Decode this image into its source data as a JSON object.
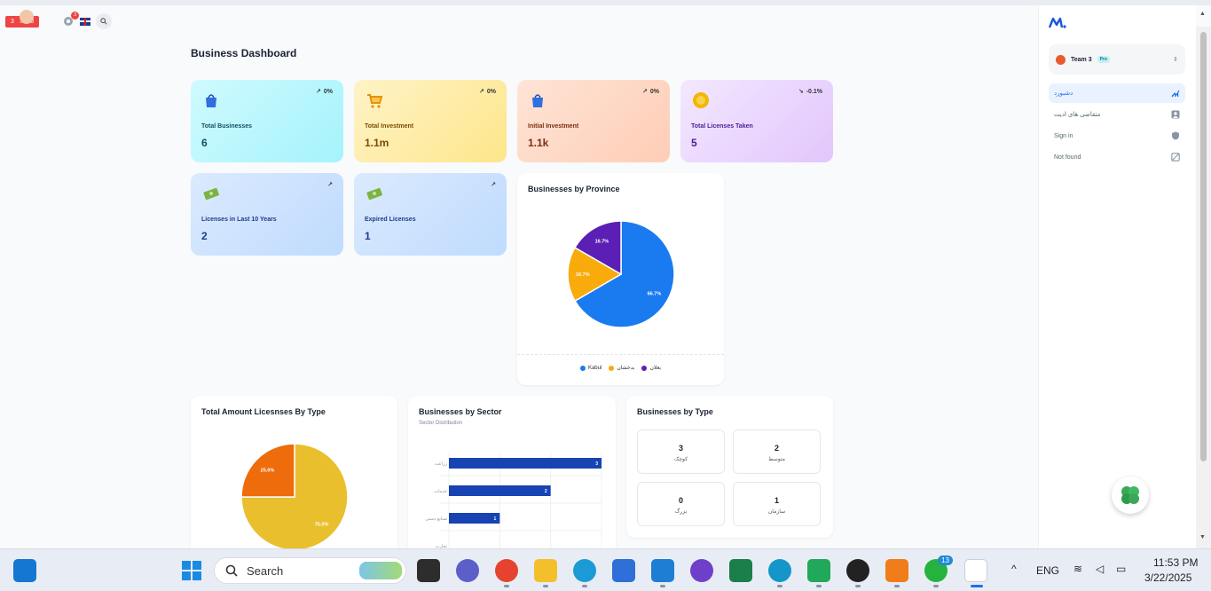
{
  "topbar": {
    "notif_count_a": "3",
    "notif_count_b": "8",
    "gear_badge": "3"
  },
  "page": {
    "title": "Business Dashboard"
  },
  "stats": [
    {
      "label": "Total Businesses",
      "value": "6",
      "trend": "0%"
    },
    {
      "label": "Total Investment",
      "value": "1.1m",
      "trend": "0%"
    },
    {
      "label": "Initial Investment",
      "value": "1.1k",
      "trend": "0%"
    },
    {
      "label": "Total Licenses Taken",
      "value": "5",
      "trend": "-0.1%"
    },
    {
      "label": "Licenses in Last 10 Years",
      "value": "2",
      "trend": ""
    },
    {
      "label": "Expired Licenses",
      "value": "1",
      "trend": ""
    }
  ],
  "colors": {
    "blue": "#1a7af0",
    "amber": "#f8ab0b",
    "purple": "#5b1fb5",
    "orange": "#ee6c0c",
    "gold": "#eabf2d",
    "navy_bar": "#1743b3",
    "accent": "#1f6feb"
  },
  "chart_data": [
    {
      "type": "pie",
      "title": "Businesses by Province",
      "labels": [
        "Kabul",
        "بدخشان",
        "بغلان"
      ],
      "values": [
        66.7,
        16.7,
        16.7
      ],
      "value_labels": [
        "66.7%",
        "16.7%",
        "16.7%"
      ],
      "legend": "bottom"
    },
    {
      "type": "pie",
      "title": "Total Amount Licesnses By Type",
      "labels": [
        "",
        ""
      ],
      "values": [
        75.0,
        25.0
      ],
      "value_labels": [
        "75.0%",
        "25.0%"
      ]
    },
    {
      "type": "bar",
      "orientation": "horizontal",
      "title": "Businesses by Sector",
      "subtitle": "Sector Distribution",
      "categories": [
        "زراعت",
        "خدمات",
        "صنایع دستی",
        "تجارت"
      ],
      "values": [
        3,
        2,
        1,
        0
      ],
      "value_labels": [
        "3",
        "2",
        "1",
        ""
      ],
      "xlim": [
        0,
        3
      ]
    }
  ],
  "business_types": {
    "title": "Businesses by Type",
    "items": [
      {
        "count": "3",
        "label": "کوچک"
      },
      {
        "count": "2",
        "label": "متوسط"
      },
      {
        "count": "0",
        "label": "بزرگ"
      },
      {
        "count": "1",
        "label": "سازمان"
      }
    ]
  },
  "sidebar": {
    "team": "Team 3",
    "badge": "Pro",
    "items": [
      {
        "label": "دشبورد",
        "icon": "chart-line-icon"
      },
      {
        "label": "متقاضی های ادیت",
        "icon": "user-icon"
      },
      {
        "label": "Sign in",
        "icon": "shield-icon"
      },
      {
        "label": "Not found",
        "icon": "not-found-icon"
      }
    ]
  },
  "taskbar": {
    "search_placeholder": "Search",
    "language": "ENG",
    "time": "11:53 PM",
    "date": "3/22/2025",
    "whatsapp_badge": "13"
  }
}
